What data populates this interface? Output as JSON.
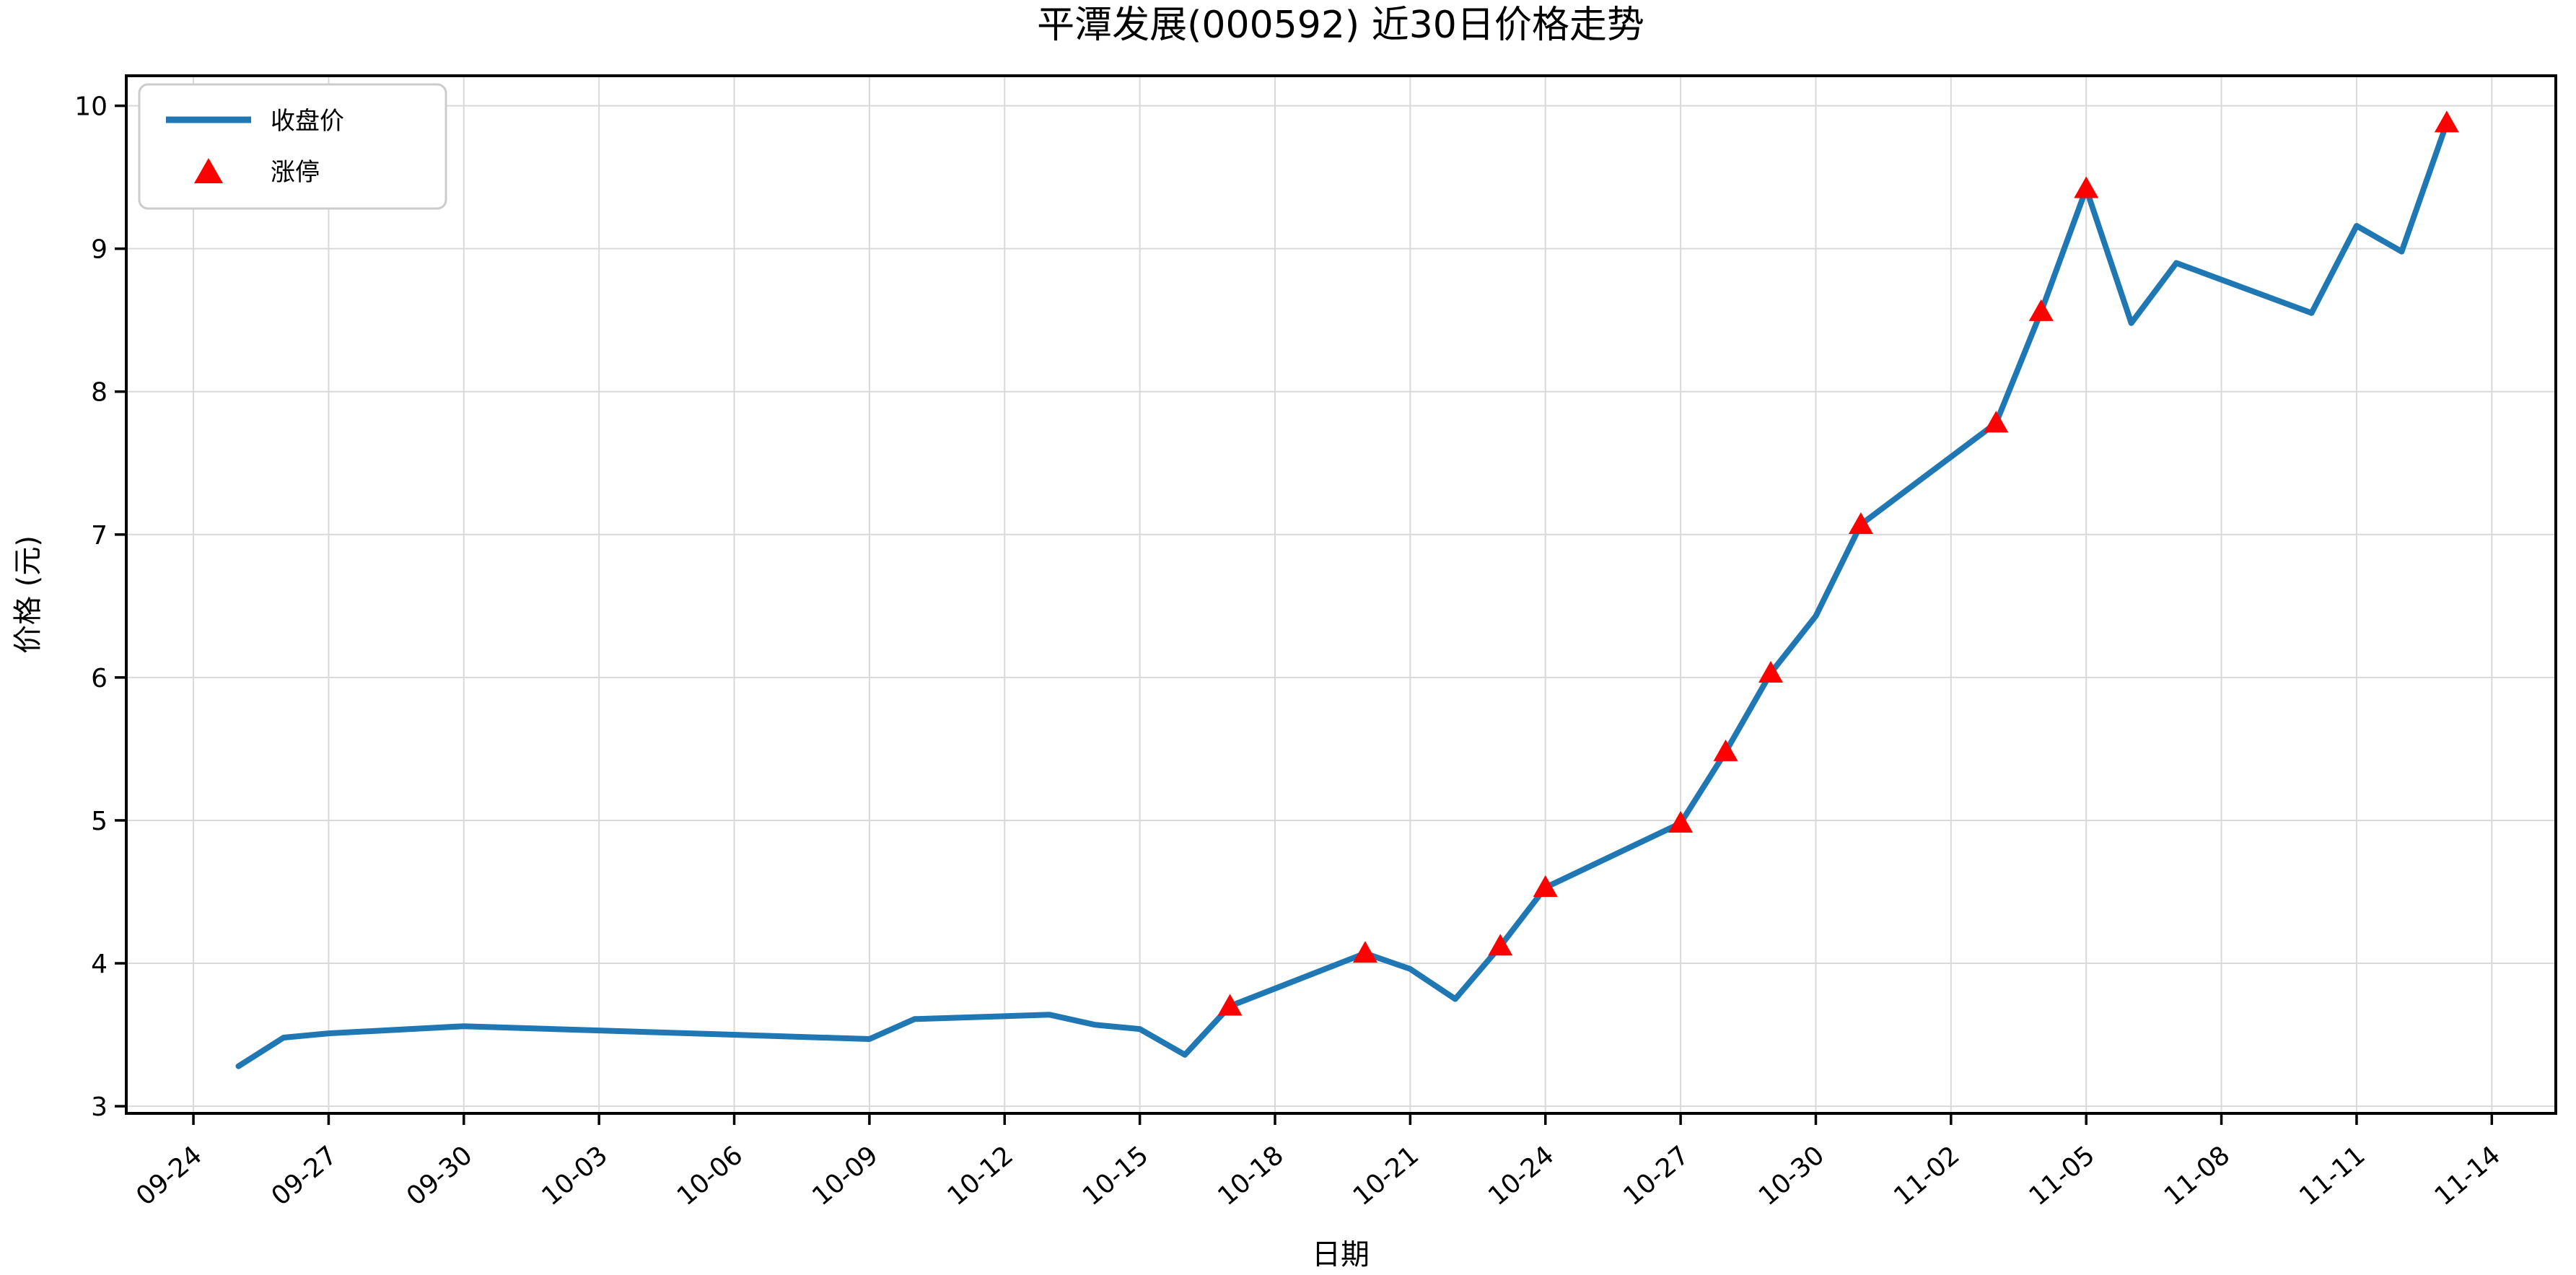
{
  "title": "平潭发展(000592) 近30日价格走势",
  "axes": {
    "x_label": "日期",
    "y_label": "价格 (元)",
    "x_tick_labels": [
      "09-24",
      "09-27",
      "09-30",
      "10-03",
      "10-06",
      "10-09",
      "10-12",
      "10-15",
      "10-18",
      "10-21",
      "10-24",
      "10-27",
      "10-30",
      "11-02",
      "11-05",
      "11-08",
      "11-11",
      "11-14"
    ],
    "y_tick_labels": [
      "3",
      "4",
      "5",
      "6",
      "7",
      "8",
      "9",
      "10"
    ]
  },
  "legend": {
    "close_label": "收盘价",
    "limit_up_label": "涨停"
  },
  "colors": {
    "line": "#1f77b4",
    "limit_up_marker": "#ff0000",
    "grid": "#d9d9d9",
    "spine": "#000000",
    "text": "#000000",
    "legend_border": "#cccccc",
    "background": "#ffffff"
  },
  "chart_data": {
    "type": "line",
    "title": "平潭发展(000592) 近30日价格走势",
    "xlabel": "日期",
    "ylabel": "价格 (元)",
    "grid": true,
    "legend_position": "upper left",
    "ylim": [
      2.95,
      10.21
    ],
    "y_ticks": [
      3,
      4,
      5,
      6,
      7,
      8,
      9,
      10
    ],
    "x_ticks": [
      "09-24",
      "09-27",
      "09-30",
      "10-03",
      "10-06",
      "10-09",
      "10-12",
      "10-15",
      "10-18",
      "10-21",
      "10-24",
      "10-27",
      "10-30",
      "11-02",
      "11-05",
      "11-08",
      "11-11",
      "11-14"
    ],
    "x": [
      "09-25",
      "09-26",
      "09-27",
      "09-30",
      "10-09",
      "10-10",
      "10-13",
      "10-14",
      "10-15",
      "10-16",
      "10-17",
      "10-20",
      "10-21",
      "10-22",
      "10-23",
      "10-24",
      "10-27",
      "10-28",
      "10-29",
      "10-30",
      "10-31",
      "11-03",
      "11-04",
      "11-05",
      "11-06",
      "11-07",
      "11-10",
      "11-11",
      "11-12",
      "11-13"
    ],
    "series": [
      {
        "name": "收盘价",
        "values": [
          3.28,
          3.48,
          3.51,
          3.56,
          3.47,
          3.61,
          3.64,
          3.57,
          3.54,
          3.36,
          3.7,
          4.07,
          3.96,
          3.75,
          4.12,
          4.53,
          4.98,
          5.48,
          6.03,
          6.43,
          7.07,
          7.78,
          8.56,
          9.42,
          8.48,
          8.9,
          8.55,
          9.16,
          8.98,
          9.88
        ]
      }
    ],
    "limit_up": {
      "name": "涨停",
      "dates": [
        "10-17",
        "10-20",
        "10-23",
        "10-24",
        "10-27",
        "10-28",
        "10-29",
        "10-31",
        "11-03",
        "11-04",
        "11-05",
        "11-13"
      ],
      "values": [
        3.7,
        4.07,
        4.12,
        4.53,
        4.98,
        5.48,
        6.03,
        7.07,
        7.78,
        8.56,
        9.42,
        9.88
      ]
    }
  }
}
